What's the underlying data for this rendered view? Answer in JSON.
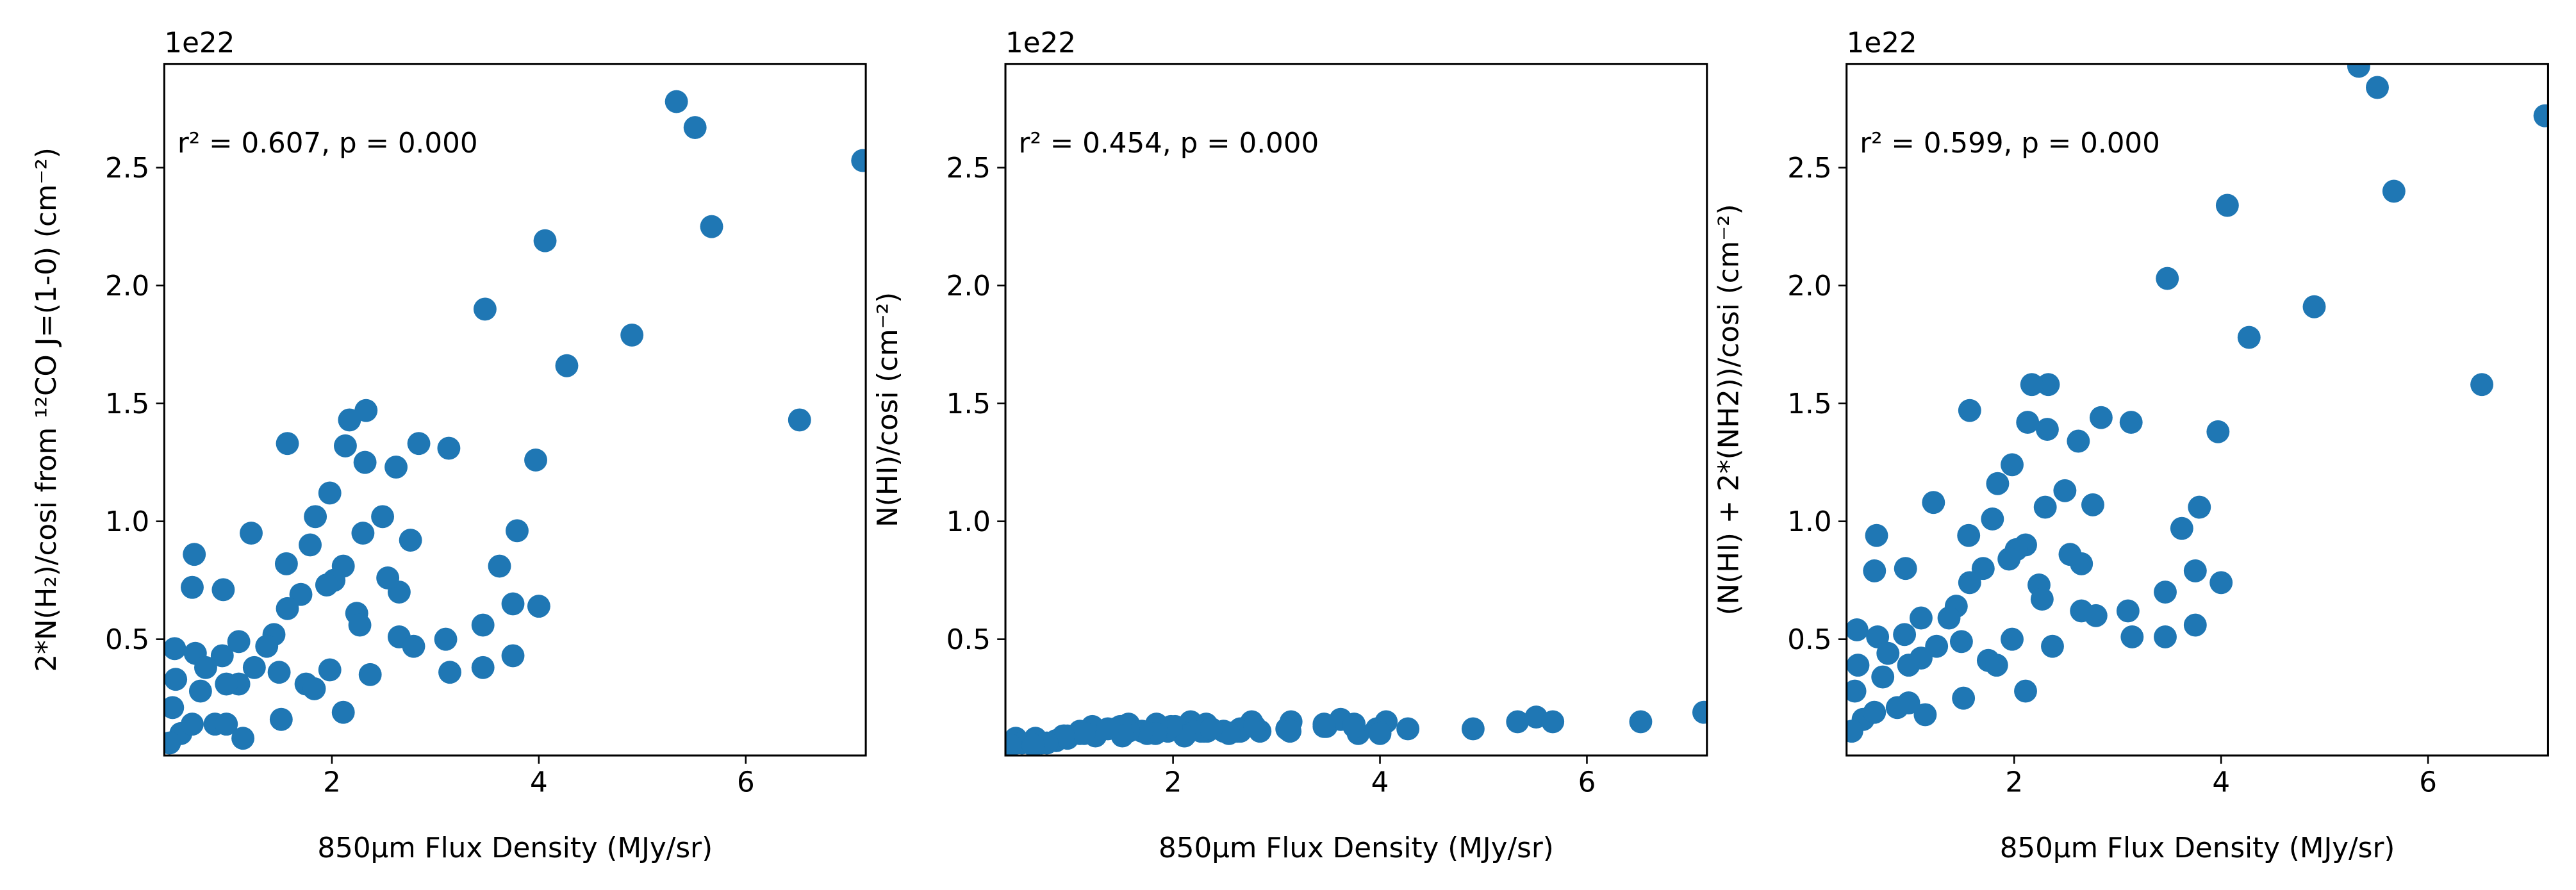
{
  "chart_data": [
    {
      "type": "scatter",
      "color": "#1f77b4",
      "offset_text": "1e22",
      "annotation": "r² = 0.607, p = 0.000",
      "x_label": "850μm Flux Density (MJy/sr)",
      "y_label": "2*N(H₂)/cosi from ¹²CO J=(1-0) (cm⁻²)",
      "xlim": [
        0.38,
        7.16
      ],
      "ylim": [
        0.007,
        2.94
      ],
      "xticks": [
        2,
        4,
        6
      ],
      "yticks": [
        0.5,
        {
          "value": 1,
          "label": "1.0"
        },
        1.5,
        {
          "value": 2,
          "label": "2.0"
        },
        2.5
      ],
      "x": [
        7.13,
        5.33,
        5.51,
        5.67,
        6.52,
        4.06,
        3.48,
        4.9,
        4.27,
        3.97,
        3.79,
        3.62,
        4.0,
        3.75,
        3.75,
        3.46,
        3.46,
        3.14,
        3.1,
        3.13,
        2.84,
        2.62,
        2.76,
        2.65,
        2.65,
        2.79,
        2.49,
        2.54,
        2.33,
        2.17,
        2.32,
        2.13,
        2.3,
        2.11,
        2.02,
        2.24,
        2.27,
        2.37,
        2.11,
        1.98,
        1.95,
        1.98,
        1.79,
        1.84,
        1.75,
        1.83,
        1.57,
        1.7,
        1.56,
        1.57,
        1.44,
        1.49,
        1.51,
        1.22,
        1.25,
        1.1,
        1.1,
        0.95,
        0.67,
        0.65,
        0.48,
        0.49,
        0.46,
        0.54,
        0.68,
        0.73,
        0.87,
        0.98,
        0.98,
        1.14,
        0.94,
        0.78,
        1.37,
        0.65,
        0.43
      ],
      "values": [
        2.53,
        2.78,
        2.67,
        2.25,
        1.43,
        2.19,
        1.9,
        1.79,
        1.66,
        1.26,
        0.96,
        0.81,
        0.64,
        0.65,
        0.43,
        0.56,
        0.38,
        0.36,
        0.5,
        1.31,
        1.33,
        1.23,
        0.92,
        0.7,
        0.51,
        0.47,
        1.02,
        0.76,
        1.47,
        1.43,
        1.25,
        1.32,
        0.95,
        0.81,
        0.75,
        0.61,
        0.56,
        0.35,
        0.19,
        1.12,
        0.73,
        0.37,
        0.9,
        1.02,
        0.31,
        0.29,
        1.33,
        0.69,
        0.82,
        0.63,
        0.52,
        0.36,
        0.16,
        0.95,
        0.38,
        0.49,
        0.31,
        0.71,
        0.86,
        0.72,
        0.46,
        0.33,
        0.21,
        0.1,
        0.44,
        0.28,
        0.14,
        0.31,
        0.14,
        0.08,
        0.43,
        0.38,
        0.47,
        0.14,
        0.06
      ]
    },
    {
      "type": "scatter",
      "color": "#1f77b4",
      "offset_text": "1e22",
      "annotation": "r² = 0.454, p = 0.000",
      "x_label": "850μm Flux Density (MJy/sr)",
      "y_label": "N(HI)/cosi (cm⁻²)",
      "xlim": [
        0.38,
        7.16
      ],
      "ylim": [
        0.007,
        2.94
      ],
      "xticks": [
        2,
        4,
        6
      ],
      "yticks": [
        0.5,
        {
          "value": 1,
          "label": "1.0"
        },
        1.5,
        {
          "value": 2,
          "label": "2.0"
        },
        2.5
      ],
      "x": [
        7.13,
        5.33,
        5.51,
        5.67,
        6.52,
        4.06,
        3.48,
        4.9,
        4.27,
        3.97,
        3.79,
        3.62,
        4.0,
        3.75,
        3.75,
        3.46,
        3.46,
        3.14,
        3.1,
        3.13,
        2.84,
        2.62,
        2.76,
        2.65,
        2.65,
        2.79,
        2.49,
        2.54,
        2.33,
        2.17,
        2.32,
        2.13,
        2.3,
        2.11,
        2.02,
        2.24,
        2.27,
        2.37,
        2.11,
        1.98,
        1.95,
        1.98,
        1.79,
        1.84,
        1.75,
        1.83,
        1.57,
        1.7,
        1.56,
        1.57,
        1.44,
        1.49,
        1.51,
        1.22,
        1.25,
        1.1,
        1.1,
        0.95,
        0.67,
        0.65,
        0.48,
        0.49,
        0.46,
        0.54,
        0.68,
        0.73,
        0.87,
        0.98,
        0.98,
        1.14,
        0.94,
        0.78,
        1.37,
        0.65,
        0.43
      ],
      "values": [
        0.19,
        0.15,
        0.17,
        0.15,
        0.15,
        0.15,
        0.13,
        0.12,
        0.12,
        0.12,
        0.1,
        0.16,
        0.1,
        0.14,
        0.13,
        0.14,
        0.13,
        0.15,
        0.12,
        0.11,
        0.11,
        0.11,
        0.15,
        0.12,
        0.11,
        0.13,
        0.11,
        0.1,
        0.11,
        0.15,
        0.14,
        0.1,
        0.11,
        0.09,
        0.13,
        0.12,
        0.11,
        0.12,
        0.09,
        0.12,
        0.11,
        0.13,
        0.11,
        0.14,
        0.1,
        0.1,
        0.14,
        0.11,
        0.12,
        0.11,
        0.12,
        0.13,
        0.09,
        0.13,
        0.09,
        0.1,
        0.11,
        0.09,
        0.08,
        0.07,
        0.08,
        0.06,
        0.07,
        0.06,
        0.07,
        0.06,
        0.07,
        0.08,
        0.09,
        0.1,
        0.09,
        0.06,
        0.12,
        0.05,
        0.05
      ]
    },
    {
      "type": "scatter",
      "color": "#1f77b4",
      "offset_text": "1e22",
      "annotation": "r² = 0.599, p = 0.000",
      "x_label": "850μm Flux Density (MJy/sr)",
      "y_label": "(N(HI) + 2*(NH2))/cosi (cm⁻²)",
      "xlim": [
        0.38,
        7.16
      ],
      "ylim": [
        0.007,
        2.94
      ],
      "xticks": [
        2,
        4,
        6
      ],
      "yticks": [
        0.5,
        {
          "value": 1,
          "label": "1.0"
        },
        1.5,
        {
          "value": 2,
          "label": "2.0"
        },
        2.5
      ],
      "x": [
        7.13,
        5.33,
        5.51,
        5.67,
        6.52,
        4.06,
        3.48,
        4.9,
        4.27,
        3.97,
        3.79,
        3.62,
        4.0,
        3.75,
        3.75,
        3.46,
        3.46,
        3.14,
        3.1,
        3.13,
        2.84,
        2.62,
        2.76,
        2.65,
        2.65,
        2.79,
        2.49,
        2.54,
        2.33,
        2.17,
        2.32,
        2.13,
        2.3,
        2.11,
        2.02,
        2.24,
        2.27,
        2.37,
        2.11,
        1.98,
        1.95,
        1.98,
        1.79,
        1.84,
        1.75,
        1.83,
        1.57,
        1.7,
        1.56,
        1.57,
        1.44,
        1.49,
        1.51,
        1.22,
        1.25,
        1.1,
        1.1,
        0.95,
        0.67,
        0.65,
        0.48,
        0.49,
        0.46,
        0.54,
        0.68,
        0.73,
        0.87,
        0.98,
        0.98,
        1.14,
        0.94,
        0.78,
        1.37,
        0.65,
        0.43
      ],
      "values": [
        2.72,
        2.93,
        2.84,
        2.4,
        1.58,
        2.34,
        2.03,
        1.91,
        1.78,
        1.38,
        1.06,
        0.97,
        0.74,
        0.79,
        0.56,
        0.7,
        0.51,
        0.51,
        0.62,
        1.42,
        1.44,
        1.34,
        1.07,
        0.82,
        0.62,
        0.6,
        1.13,
        0.86,
        1.58,
        1.58,
        1.39,
        1.42,
        1.06,
        0.9,
        0.88,
        0.73,
        0.67,
        0.47,
        0.28,
        1.24,
        0.84,
        0.5,
        1.01,
        1.16,
        0.41,
        0.39,
        1.47,
        0.8,
        0.94,
        0.74,
        0.64,
        0.49,
        0.25,
        1.08,
        0.47,
        0.59,
        0.42,
        0.8,
        0.94,
        0.79,
        0.54,
        0.39,
        0.28,
        0.16,
        0.51,
        0.34,
        0.21,
        0.39,
        0.23,
        0.18,
        0.52,
        0.44,
        0.59,
        0.19,
        0.11
      ]
    }
  ]
}
